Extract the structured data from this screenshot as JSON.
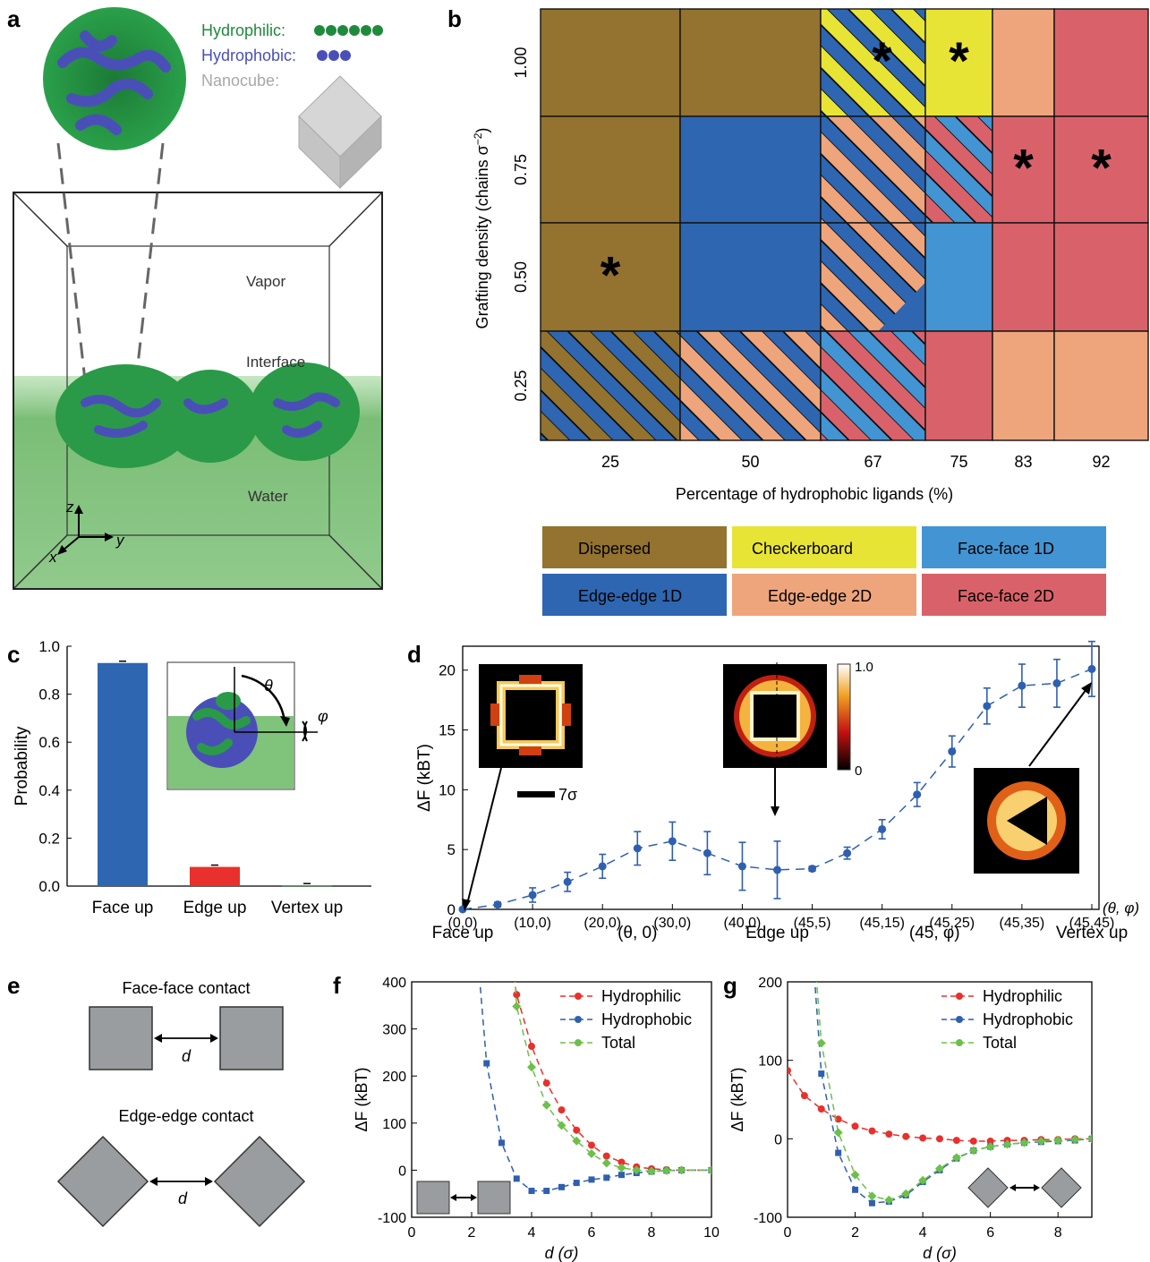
{
  "colors": {
    "dispersed": "#94722f",
    "checkerboard": "#e8e436",
    "ff1d": "#4394d2",
    "ee1d": "#2e66b1",
    "ee2d": "#eea57c",
    "ff2d": "#d9626a",
    "hydrophilic": "#1f8a3c",
    "hydrophobic": "#4a4fb8",
    "nanocube": "#9b9b9b",
    "red_series": "#e8302c",
    "blue_series": "#2f5fb0",
    "green_series": "#6cc04a"
  },
  "panel_a": {
    "label": "a",
    "legend": {
      "hydrophilic": "Hydrophilic:",
      "hydrophobic": "Hydrophobic:",
      "nanocube": "Nanocube:"
    },
    "vapor": "Vapor",
    "interface": "Interface",
    "water": "Water",
    "axes": {
      "z": "z",
      "y": "y",
      "x": "x"
    }
  },
  "panel_b": {
    "label": "b",
    "ylabel": "Grafting density (chains σ",
    "ylabel_sup": "−2",
    "ylabel_close": ")",
    "xlabel": "Percentage of hydrophobic ligands (%)",
    "y_ticks": [
      "1.00",
      "0.75",
      "0.50",
      "0.25"
    ],
    "x_ticks": [
      "25",
      "50",
      "67",
      "75",
      "83",
      "92"
    ],
    "star": "*",
    "legend": [
      "Dispersed",
      "Checkerboard",
      "Face-face 1D",
      "Edge-edge 1D",
      "Edge-edge 2D",
      "Face-face 2D"
    ]
  },
  "chart_data": [
    {
      "panel": "c",
      "type": "bar",
      "categories": [
        "Face up",
        "Edge up",
        "Vertex up"
      ],
      "values": [
        0.93,
        0.08,
        0.003
      ],
      "ylabel": "Probability",
      "ylim": [
        0,
        1
      ],
      "yticks": [
        "0.0",
        "0.2",
        "0.4",
        "0.6",
        "0.8",
        "1.0"
      ],
      "inset": {
        "theta": "θ",
        "phi": "φ"
      }
    },
    {
      "panel": "d",
      "type": "line",
      "ylabel": "ΔF (kBT)",
      "ylim": [
        0,
        22
      ],
      "yticks": [
        "0",
        "5",
        "10",
        "15",
        "20"
      ],
      "xticks": [
        "(0,0)",
        "(10,0)",
        "(20,0)",
        "(30,0)",
        "(40,0)",
        "(45,5)",
        "(45,15)",
        "(45,25)",
        "(45,35)",
        "(45,45)"
      ],
      "xaxis_label": "(θ, φ)",
      "sublabels": [
        "Face up",
        "(θ, 0)",
        "Edge up",
        "(45, φ)",
        "Vertex up"
      ],
      "x": [
        0,
        1,
        2,
        3,
        4,
        5,
        6,
        7,
        8,
        9,
        10,
        11,
        12,
        13,
        14,
        15,
        16,
        17,
        18
      ],
      "values": [
        0.0,
        0.4,
        1.2,
        2.3,
        3.6,
        5.1,
        5.7,
        4.7,
        3.6,
        3.3,
        3.4,
        4.7,
        6.7,
        9.6,
        13.2,
        17.0,
        18.7,
        18.9,
        20.1
      ],
      "errors": [
        0.1,
        0.2,
        0.6,
        0.8,
        1.0,
        1.4,
        1.6,
        1.8,
        2.0,
        2.4,
        0.2,
        0.5,
        0.8,
        1.0,
        1.3,
        1.5,
        1.8,
        2.0,
        2.3
      ],
      "colorbar": {
        "max": "1.0",
        "min": "0"
      },
      "scale": "7σ"
    },
    {
      "panel": "f",
      "type": "line",
      "xlabel": "d (σ)",
      "ylabel": "ΔF (kBT)",
      "xlim": [
        0,
        10
      ],
      "ylim": [
        -100,
        400
      ],
      "xticks": [
        "0",
        "2",
        "4",
        "6",
        "8",
        "10"
      ],
      "yticks": [
        "-100",
        "0",
        "100",
        "200",
        "300",
        "400"
      ],
      "series": [
        {
          "name": "Hydrophilic",
          "x": [
            3.5,
            4,
            4.5,
            5,
            5.5,
            6,
            6.5,
            7,
            7.5,
            8,
            8.5,
            9,
            10
          ],
          "values": [
            373,
            263,
            185,
            128,
            85,
            53,
            30,
            17,
            7,
            3,
            1,
            0,
            0
          ]
        },
        {
          "name": "Hydrophobic",
          "x": [
            2.5,
            3,
            3.5,
            4,
            4.5,
            5,
            5.5,
            6,
            6.5,
            7,
            7.5,
            8,
            8.5,
            9,
            10
          ],
          "values": [
            227,
            58,
            -18,
            -44,
            -44,
            -36,
            -27,
            -20,
            -16,
            -10,
            -6,
            -3,
            -1,
            0,
            0
          ]
        },
        {
          "name": "Total",
          "x": [
            3.5,
            4,
            4.5,
            5,
            5.5,
            6,
            6.5,
            7,
            7.5,
            8,
            8.5,
            9,
            10
          ],
          "values": [
            348,
            219,
            138,
            95,
            62,
            35,
            15,
            5,
            0,
            -2,
            -1,
            0,
            0
          ]
        }
      ]
    },
    {
      "panel": "g",
      "type": "line",
      "xlabel": "d (σ)",
      "ylabel": "ΔF (kBT)",
      "xlim": [
        0,
        9
      ],
      "ylim": [
        -100,
        200
      ],
      "xticks": [
        "0",
        "2",
        "4",
        "6",
        "8"
      ],
      "yticks": [
        "-100",
        "0",
        "100",
        "200"
      ],
      "series": [
        {
          "name": "Hydrophilic",
          "x": [
            0,
            0.5,
            1,
            1.5,
            2,
            2.5,
            3,
            3.5,
            4,
            4.5,
            5,
            5.5,
            6,
            6.5,
            7,
            7.5,
            8,
            8.5,
            9
          ],
          "values": [
            87,
            55,
            38,
            25,
            16,
            10,
            6,
            3,
            1,
            0,
            -2,
            -3,
            -3,
            -2,
            -2,
            -1,
            -1,
            0,
            0
          ]
        },
        {
          "name": "Hydrophobic",
          "x": [
            1,
            1.5,
            2,
            2.5,
            3,
            3.5,
            4,
            4.5,
            5,
            5.5,
            6,
            6.5,
            7,
            7.5,
            8,
            8.5,
            9
          ],
          "values": [
            83,
            -18,
            -65,
            -82,
            -80,
            -72,
            -55,
            -40,
            -25,
            -15,
            -10,
            -7,
            -5,
            -4,
            -3,
            -2,
            0
          ]
        },
        {
          "name": "Total",
          "x": [
            1,
            1.5,
            2,
            2.5,
            3,
            3.5,
            4,
            4.5,
            5,
            5.5,
            6,
            6.5,
            7,
            7.5,
            8,
            8.5,
            9
          ],
          "values": [
            122,
            8,
            -46,
            -73,
            -78,
            -70,
            -53,
            -38,
            -24,
            -15,
            -10,
            -7,
            -5,
            -3,
            -2,
            -1,
            0
          ]
        }
      ]
    }
  ],
  "panel_e": {
    "label": "e",
    "face_title": "Face-face contact",
    "edge_title": "Edge-edge contact",
    "d": "d"
  },
  "panel_labels": {
    "c": "c",
    "d": "d",
    "f": "f",
    "g": "g"
  }
}
